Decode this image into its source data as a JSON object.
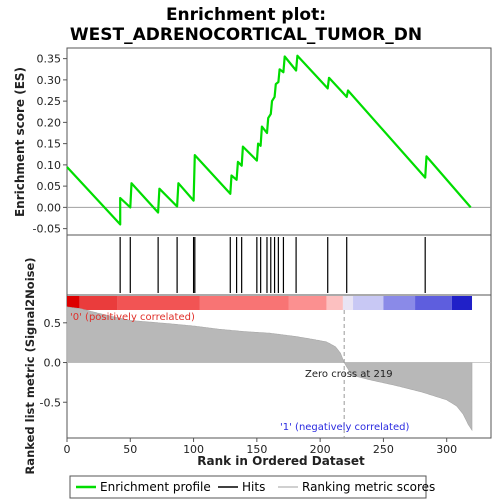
{
  "chart_data": {
    "type": "line",
    "title_lines": [
      "Enrichment plot:",
      "WEST_ADRENOCORTICAL_TUMOR_DN"
    ],
    "xlabel": "Rank in Ordered Dataset",
    "ylabel_top": "Enrichment score (ES)",
    "ylabel_bottom": "Ranked list metric (Signal2Noise)",
    "x_range": [
      0,
      335
    ],
    "x_ticks": [
      0,
      50,
      100,
      150,
      200,
      250,
      300
    ],
    "es_y_range": [
      -0.065,
      0.375
    ],
    "es_y_ticks": [
      -0.05,
      0.0,
      0.05,
      0.1,
      0.15,
      0.2,
      0.25,
      0.3,
      0.35
    ],
    "es_y_tick_labels": [
      "-0.05",
      "0.00",
      "0.05",
      "0.10",
      "0.15",
      "0.20",
      "0.25",
      "0.30",
      "0.35"
    ],
    "metric_y_range": [
      -0.95,
      0.85
    ],
    "metric_y_ticks": [
      0.5,
      0.0,
      -0.5
    ],
    "metric_y_tick_labels": [
      "0.5",
      "0.0",
      "-0.5"
    ],
    "enrichment_profile": {
      "x": [
        0,
        42,
        42,
        50,
        51,
        72,
        73,
        87,
        88,
        100,
        101,
        129,
        130,
        134,
        135,
        138,
        139,
        150,
        151,
        153,
        154,
        158,
        159,
        161,
        162,
        164,
        165,
        167,
        168,
        171,
        172,
        181,
        182,
        206,
        207,
        221,
        222,
        283,
        284,
        319
      ],
      "y": [
        0.095,
        -0.04,
        0.022,
        0.0,
        0.057,
        -0.012,
        0.044,
        0.002,
        0.057,
        0.016,
        0.123,
        0.032,
        0.075,
        0.065,
        0.107,
        0.098,
        0.143,
        0.11,
        0.15,
        0.145,
        0.19,
        0.175,
        0.21,
        0.22,
        0.25,
        0.26,
        0.29,
        0.295,
        0.325,
        0.318,
        0.355,
        0.322,
        0.357,
        0.28,
        0.305,
        0.26,
        0.275,
        0.07,
        0.12,
        0.0
      ]
    },
    "hits": [
      42,
      50,
      72,
      87,
      100,
      101,
      129,
      134,
      138,
      150,
      153,
      158,
      161,
      164,
      167,
      171,
      181,
      206,
      221,
      283
    ],
    "zero_cross_rank": 219,
    "total_ranks": 320,
    "heatmap_segments": [
      {
        "x0": 0,
        "x1": 10,
        "color": "#dd0000"
      },
      {
        "x0": 10,
        "x1": 40,
        "color": "#ea3c3c"
      },
      {
        "x0": 40,
        "x1": 105,
        "color": "#f25454"
      },
      {
        "x0": 105,
        "x1": 175,
        "color": "#f87474"
      },
      {
        "x0": 175,
        "x1": 205,
        "color": "#fb9090"
      },
      {
        "x0": 205,
        "x1": 218,
        "color": "#fcc0c0"
      },
      {
        "x0": 218,
        "x1": 226,
        "color": "#e8e4f4"
      },
      {
        "x0": 226,
        "x1": 250,
        "color": "#c8c8f4"
      },
      {
        "x0": 250,
        "x1": 275,
        "color": "#8a8ae8"
      },
      {
        "x0": 275,
        "x1": 304,
        "color": "#5e5ede"
      },
      {
        "x0": 304,
        "x1": 320,
        "color": "#2020c8"
      }
    ],
    "metric_profile": {
      "rank": [
        0,
        10,
        30,
        50,
        80,
        100,
        120,
        140,
        160,
        180,
        195,
        205,
        212,
        216,
        219,
        225,
        240,
        260,
        280,
        300,
        308,
        313,
        317,
        320
      ],
      "value": [
        0.7,
        0.68,
        0.6,
        0.53,
        0.49,
        0.46,
        0.42,
        0.39,
        0.37,
        0.33,
        0.29,
        0.26,
        0.2,
        0.12,
        0.0,
        -0.16,
        -0.22,
        -0.29,
        -0.37,
        -0.47,
        -0.55,
        -0.65,
        -0.78,
        -0.85
      ]
    },
    "annotations": {
      "positive": "'0' (positively correlated)",
      "negative": "'1' (negatively correlated)",
      "zero_cross": "Zero cross at 219"
    },
    "legend": [
      {
        "label": "Enrichment profile",
        "color": "#00dd00",
        "style": "line"
      },
      {
        "label": "Hits",
        "color": "#000000",
        "style": "line"
      },
      {
        "label": "Ranking metric scores",
        "color": "#c0c0c0",
        "style": "line"
      }
    ],
    "colors": {
      "enrichment_line": "#00dd00",
      "hit_line": "#000000",
      "metric_fill": "#b8b8b8",
      "zero_line": "#a0a0a0",
      "panel_border": "#555555"
    }
  }
}
